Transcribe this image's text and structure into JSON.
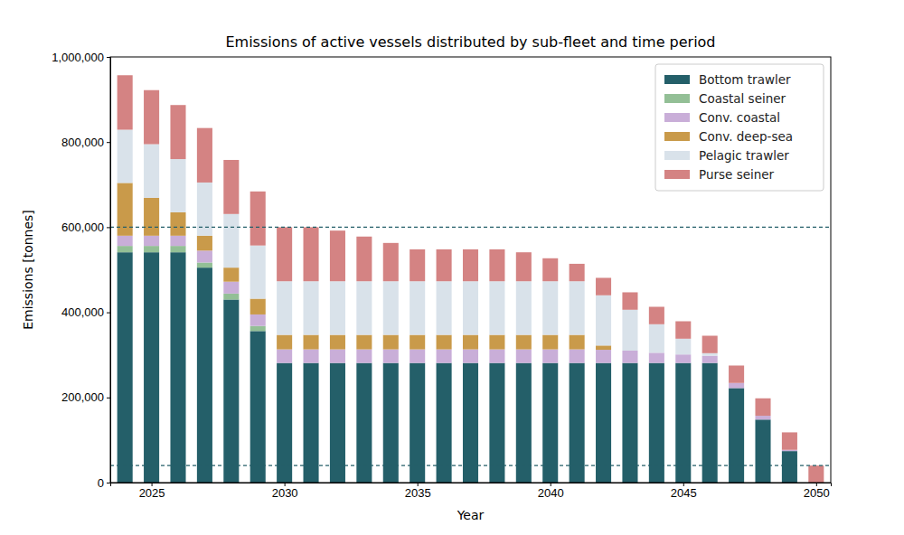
{
  "chart_data": {
    "type": "bar",
    "stacked": true,
    "title": "Emissions of active vessels distributed by sub-fleet and time period",
    "x_label": "Year",
    "y_label": "Emissions [tonnes]",
    "x": [
      2024,
      2025,
      2026,
      2027,
      2028,
      2029,
      2030,
      2031,
      2032,
      2033,
      2034,
      2035,
      2036,
      2037,
      2038,
      2039,
      2040,
      2041,
      2042,
      2043,
      2044,
      2045,
      2046,
      2047,
      2048,
      2049,
      2050
    ],
    "xlim": [
      2023.45,
      2050.55
    ],
    "xticks": [
      2025,
      2030,
      2035,
      2040,
      2045,
      2050
    ],
    "ylim": [
      0,
      1000000
    ],
    "yticks": [
      {
        "value": 0,
        "label": "0"
      },
      {
        "value": 200000,
        "label": "200,000"
      },
      {
        "value": 400000,
        "label": "400,000"
      },
      {
        "value": 600000,
        "label": "600,000"
      },
      {
        "value": 800000,
        "label": "800,000"
      },
      {
        "value": 1000000,
        "label": "1,000,000"
      }
    ],
    "legend": "upper right",
    "hlines": [
      600000,
      40000
    ],
    "series": [
      {
        "name": "Bottom trawler",
        "color": "#245f69",
        "values": [
          541000,
          541000,
          541000,
          505000,
          430000,
          356000,
          281000,
          281000,
          281000,
          281000,
          281000,
          281000,
          281000,
          281000,
          281000,
          281000,
          281000,
          281000,
          281000,
          281000,
          281000,
          281000,
          281000,
          222000,
          148000,
          74000,
          0
        ]
      },
      {
        "name": "Coastal seiner",
        "color": "#93bf96",
        "values": [
          15000,
          15000,
          15000,
          12000,
          14000,
          12000,
          0,
          0,
          0,
          0,
          0,
          0,
          0,
          0,
          0,
          0,
          0,
          0,
          0,
          0,
          0,
          0,
          0,
          0,
          0,
          0,
          0
        ]
      },
      {
        "name": "Conv. coastal",
        "color": "#c9aed8",
        "values": [
          24000,
          24000,
          24000,
          28000,
          28000,
          27000,
          32000,
          32000,
          32000,
          32000,
          32000,
          32000,
          32000,
          32000,
          32000,
          32000,
          32000,
          32000,
          31000,
          29000,
          24000,
          20000,
          17000,
          12000,
          9000,
          3000,
          0
        ]
      },
      {
        "name": "Conv. deep-sea",
        "color": "#c99a4a",
        "values": [
          124000,
          89000,
          55000,
          35000,
          33000,
          37000,
          34000,
          34000,
          34000,
          34000,
          34000,
          34000,
          34000,
          34000,
          34000,
          34000,
          34000,
          34000,
          10000,
          0,
          0,
          0,
          0,
          0,
          0,
          0,
          0
        ]
      },
      {
        "name": "Pelagic trawler",
        "color": "#d9e2ea",
        "values": [
          125000,
          126000,
          125000,
          125000,
          126000,
          125000,
          126000,
          126000,
          126000,
          126000,
          126000,
          126000,
          126000,
          126000,
          126000,
          126000,
          126000,
          126000,
          118000,
          96000,
          67000,
          37000,
          6000,
          0,
          0,
          0,
          0
        ]
      },
      {
        "name": "Purse seiner",
        "color": "#d48383",
        "values": [
          128000,
          127000,
          127000,
          128000,
          127000,
          127000,
          127000,
          127000,
          119000,
          105000,
          90000,
          75000,
          75000,
          75000,
          75000,
          68000,
          54000,
          41000,
          41000,
          41000,
          41000,
          41000,
          41000,
          41000,
          41000,
          41000,
          40000
        ]
      }
    ]
  }
}
